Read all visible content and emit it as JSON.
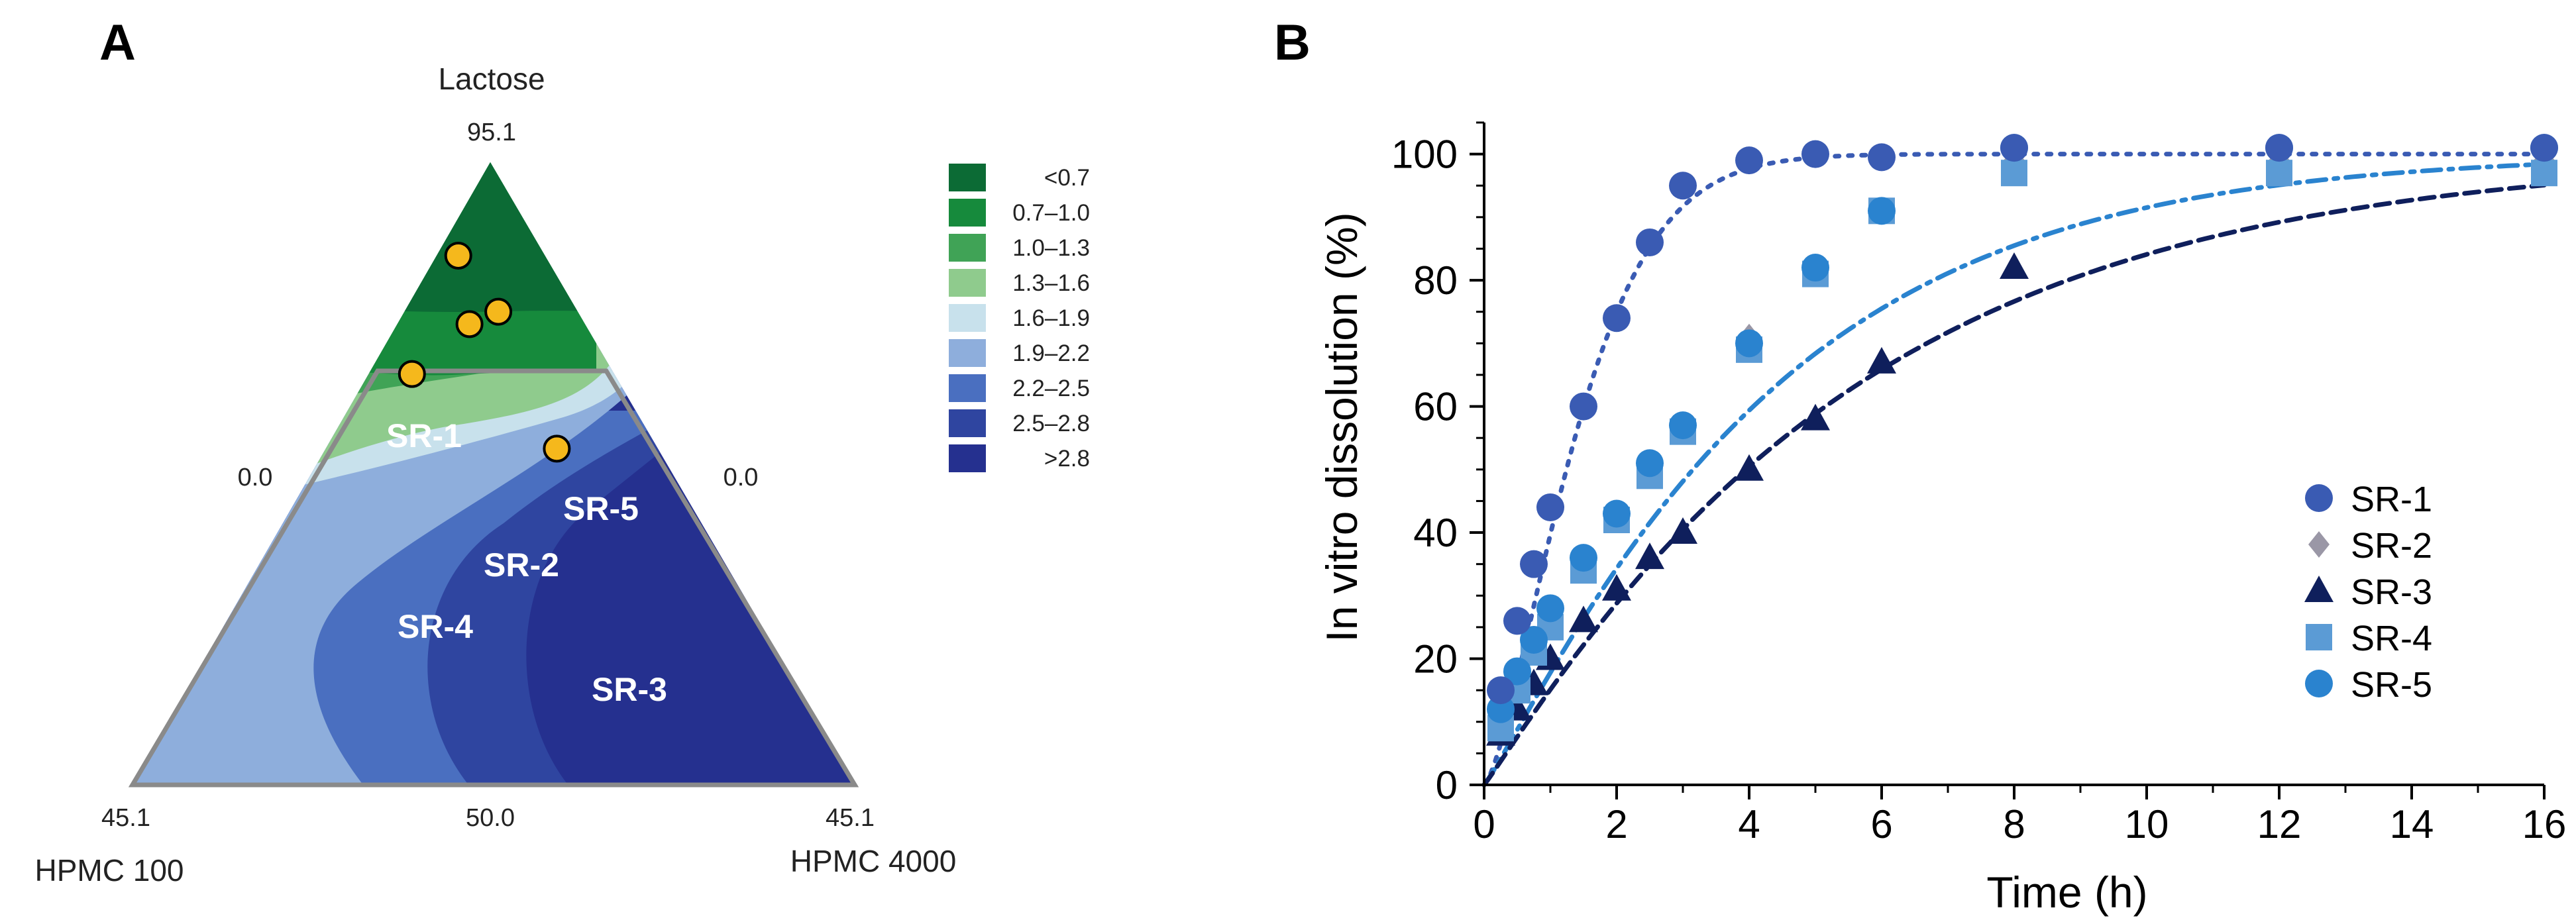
{
  "chart_data": [
    {
      "panel": "A",
      "type": "ternary-contour",
      "vertices": {
        "top": {
          "label": "Lactose",
          "value": "95.1"
        },
        "left": {
          "label": "HPMC 100",
          "value": "45.1"
        },
        "right": {
          "label": "HPMC 4000",
          "value": "45.1"
        }
      },
      "edge_values": {
        "left_edge": "0.0",
        "right_edge": "0.0",
        "bottom_mid": "50.0"
      },
      "legend": [
        {
          "label": "<0.7",
          "color": "#0c6b35"
        },
        {
          "label": "0.7–1.0",
          "color": "#168a3c"
        },
        {
          "label": "1.0–1.3",
          "color": "#40a356"
        },
        {
          "label": "1.3–1.6",
          "color": "#8fcb8d"
        },
        {
          "label": "1.6–1.9",
          "color": "#c8e1ec"
        },
        {
          "label": "1.9–2.2",
          "color": "#8eaedc"
        },
        {
          "label": "2.2–2.5",
          "color": "#4a6fc0"
        },
        {
          "label": "2.5–2.8",
          "color": "#2f45a0"
        },
        {
          "label": ">2.8",
          "color": "#25308f"
        }
      ],
      "formulations": [
        {
          "name": "SR-1",
          "lactose": 85,
          "hpmc100": 12,
          "hpmc4000": 3
        },
        {
          "name": "SR-5",
          "lactose": 76,
          "hpmc100": 11,
          "hpmc4000": 13
        },
        {
          "name": "SR-2",
          "lactose": 74,
          "hpmc100": 16,
          "hpmc4000": 10
        },
        {
          "name": "SR-4",
          "lactose": 66,
          "hpmc100": 28,
          "hpmc4000": 6
        },
        {
          "name": "SR-3",
          "lactose": 54,
          "hpmc100": 14,
          "hpmc4000": 32
        }
      ]
    },
    {
      "panel": "B",
      "type": "scatter",
      "xlabel": "Time (h)",
      "ylabel": "In vitro dissolution (%)",
      "xlim": [
        0,
        16
      ],
      "ylim": [
        0,
        105
      ],
      "xticks": [
        0,
        2,
        4,
        6,
        8,
        10,
        12,
        14,
        16
      ],
      "yticks": [
        0,
        20,
        40,
        60,
        80,
        100
      ],
      "legend_position": "right",
      "series": [
        {
          "name": "SR-1",
          "marker": "circle",
          "color": "#3a5bb3",
          "x": [
            0.25,
            0.5,
            0.75,
            1,
            1.5,
            2,
            2.5,
            3,
            4,
            5,
            6,
            8,
            12,
            16
          ],
          "y": [
            15,
            26,
            35,
            44,
            60,
            74,
            86,
            95,
            99,
            100,
            99.5,
            101,
            101,
            101
          ]
        },
        {
          "name": "SR-2",
          "marker": "diamond",
          "color": "#9a97a6",
          "x": [
            0.25,
            0.5,
            0.75,
            1,
            1.5,
            2,
            2.5,
            3,
            4,
            5,
            6,
            8,
            12,
            16
          ],
          "y": [
            10,
            16,
            22,
            27,
            35,
            43,
            50,
            57,
            71,
            82,
            91,
            99,
            99,
            99
          ]
        },
        {
          "name": "SR-3",
          "marker": "triangle",
          "color": "#0f1f5c",
          "x": [
            0.25,
            0.5,
            0.75,
            1,
            1.5,
            2,
            2.5,
            3,
            4,
            5,
            6,
            8
          ],
          "y": [
            8,
            12,
            16,
            20,
            26,
            31,
            36,
            40,
            50,
            58,
            67,
            82
          ]
        },
        {
          "name": "SR-4",
          "marker": "square",
          "color": "#5b9bd5",
          "x": [
            0.25,
            0.5,
            0.75,
            1,
            1.5,
            2,
            2.5,
            3,
            4,
            5,
            6,
            8,
            12,
            16
          ],
          "y": [
            9,
            15,
            21,
            25,
            34,
            42,
            49,
            56,
            69,
            81,
            91,
            97,
            97,
            97
          ]
        },
        {
          "name": "SR-5",
          "marker": "circle",
          "color": "#2a83cf",
          "x": [
            0.25,
            0.5,
            0.75,
            1,
            1.5,
            2,
            2.5,
            3,
            4,
            5,
            6,
            8,
            12,
            16
          ],
          "y": [
            12,
            18,
            23,
            28,
            36,
            43,
            51,
            57,
            70,
            82,
            91,
            101,
            101,
            101
          ]
        }
      ],
      "fits": [
        {
          "series": "SR-1",
          "style": "dotted",
          "color": "#3a5bb3",
          "model": "weibull",
          "a": 1.6,
          "b": 1.45
        },
        {
          "series": "SR-5",
          "style": "dashdot",
          "color": "#2a83cf",
          "model": "weibull",
          "a": 4.4,
          "b": 1.1
        },
        {
          "series": "SR-3",
          "style": "dashed",
          "color": "#0f1f5c",
          "model": "weibull",
          "a": 5.6,
          "b": 1.05
        }
      ]
    }
  ],
  "panel_labels": {
    "a": "A",
    "b": "B"
  },
  "labels": {
    "lactose": "Lactose",
    "lactose_value": "95.1",
    "left_edge_value": "0.0",
    "right_edge_value": "0.0",
    "left_bottom_value": "45.1",
    "mid_bottom_value": "50.0",
    "right_bottom_value": "45.1",
    "hpmc100": "HPMC 100",
    "hpmc4000": "HPMC 4000",
    "sr1": "SR-1",
    "sr2": "SR-2",
    "sr3": "SR-3",
    "sr4": "SR-4",
    "sr5": "SR-5"
  }
}
